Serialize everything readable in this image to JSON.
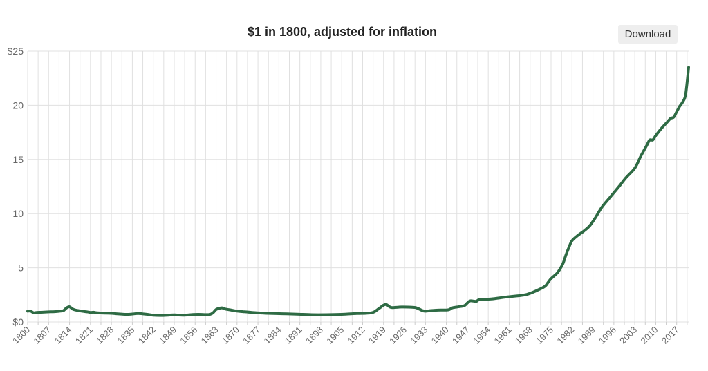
{
  "chart": {
    "title": "$1 in 1800, adjusted for inflation",
    "download_label": "Download"
  },
  "colors": {
    "line": "#2e6b44",
    "grid": "#e0e0e0",
    "tick_text": "#666666"
  },
  "chart_data": {
    "type": "line",
    "title": "$1 in 1800, adjusted for inflation",
    "xlabel": "",
    "ylabel": "",
    "xlim": [
      1800,
      2021
    ],
    "ylim": [
      0,
      25
    ],
    "grid": true,
    "legend": "none",
    "x_tick_labels": [
      "1800",
      "1807",
      "1814",
      "1821",
      "1828",
      "1835",
      "1842",
      "1849",
      "1856",
      "1863",
      "1870",
      "1877",
      "1884",
      "1891",
      "1898",
      "1905",
      "1912",
      "1919",
      "1926",
      "1933",
      "1940",
      "1947",
      "1954",
      "1961",
      "1968",
      "1975",
      "1982",
      "1989",
      "1996",
      "2003",
      "2010",
      "2017"
    ],
    "y_ticks": [
      0,
      5,
      10,
      15,
      20,
      25
    ],
    "y_tick_labels": [
      "$0",
      "5",
      "10",
      "15",
      "20",
      "$25"
    ],
    "series": [
      {
        "x": [
          1800,
          1801,
          1802,
          1803,
          1805,
          1807,
          1809,
          1811,
          1812,
          1813,
          1814,
          1815,
          1816,
          1817,
          1818,
          1820,
          1821,
          1822,
          1823,
          1825,
          1828,
          1830,
          1833,
          1835,
          1837,
          1840,
          1842,
          1845,
          1849,
          1852,
          1855,
          1857,
          1860,
          1861,
          1862,
          1863,
          1864,
          1865,
          1866,
          1868,
          1870,
          1872,
          1875,
          1878,
          1880,
          1885,
          1890,
          1895,
          1900,
          1905,
          1910,
          1913,
          1915,
          1916,
          1917,
          1918,
          1919,
          1920,
          1921,
          1922,
          1925,
          1929,
          1930,
          1931,
          1932,
          1933,
          1935,
          1938,
          1940,
          1941,
          1942,
          1944,
          1946,
          1947,
          1948,
          1950,
          1951,
          1955,
          1960,
          1965,
          1967,
          1969,
          1971,
          1973,
          1974,
          1975,
          1977,
          1978,
          1979,
          1980,
          1981,
          1982,
          1984,
          1986,
          1988,
          1990,
          1992,
          1995,
          1998,
          2000,
          2003,
          2005,
          2007,
          2008,
          2009,
          2010,
          2012,
          2014,
          2015,
          2016,
          2017,
          2018,
          2019,
          2020,
          2021
        ],
        "values": [
          1.0,
          1.0,
          0.85,
          0.88,
          0.9,
          0.93,
          0.95,
          1.0,
          1.05,
          1.3,
          1.4,
          1.2,
          1.1,
          1.05,
          1.0,
          0.93,
          0.88,
          0.9,
          0.85,
          0.82,
          0.8,
          0.75,
          0.7,
          0.73,
          0.78,
          0.7,
          0.62,
          0.6,
          0.65,
          0.62,
          0.68,
          0.7,
          0.68,
          0.7,
          0.85,
          1.15,
          1.25,
          1.3,
          1.2,
          1.1,
          1.0,
          0.95,
          0.88,
          0.83,
          0.8,
          0.76,
          0.72,
          0.67,
          0.67,
          0.7,
          0.78,
          0.8,
          0.85,
          0.95,
          1.15,
          1.35,
          1.55,
          1.6,
          1.4,
          1.32,
          1.38,
          1.35,
          1.3,
          1.18,
          1.05,
          1.0,
          1.05,
          1.1,
          1.1,
          1.15,
          1.3,
          1.4,
          1.5,
          1.75,
          1.95,
          1.9,
          2.05,
          2.12,
          2.3,
          2.45,
          2.55,
          2.75,
          3.0,
          3.3,
          3.65,
          4.0,
          4.5,
          4.9,
          5.4,
          6.2,
          6.9,
          7.5,
          8.0,
          8.4,
          8.9,
          9.7,
          10.6,
          11.6,
          12.6,
          13.3,
          14.2,
          15.3,
          16.3,
          16.8,
          16.8,
          17.2,
          17.9,
          18.5,
          18.8,
          18.9,
          19.4,
          19.9,
          20.3,
          21.0,
          23.5
        ]
      }
    ]
  }
}
